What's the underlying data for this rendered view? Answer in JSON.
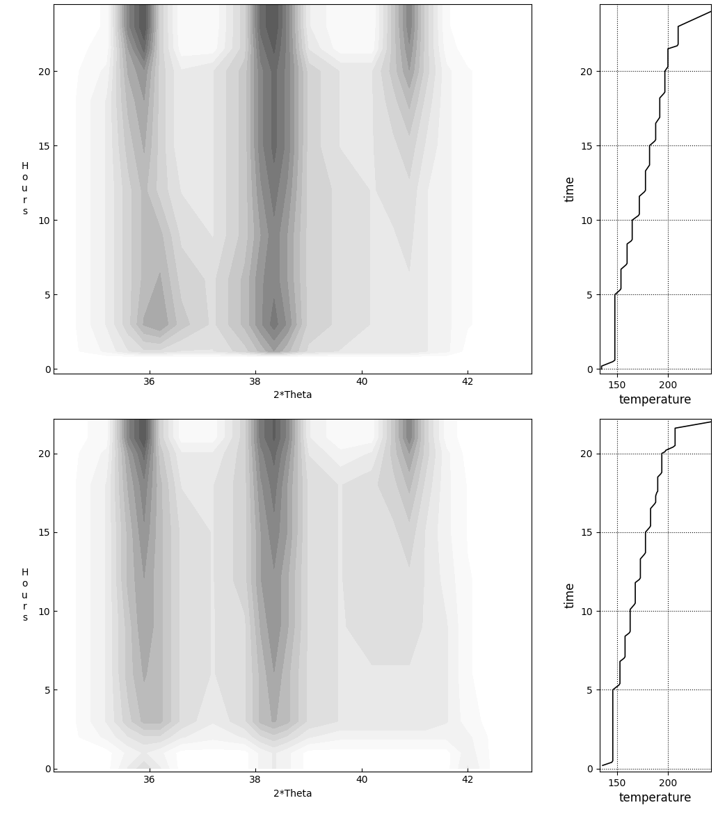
{
  "chart_data": [
    {
      "type": "contour",
      "x_label": "2*Theta",
      "y_label": "Hours",
      "xlim": [
        34.2,
        43.2
      ],
      "xticks": [
        36,
        38,
        40,
        42
      ],
      "ylim": [
        -0.3,
        24.5
      ],
      "yticks": [
        0,
        5,
        10,
        15,
        20
      ],
      "x": [
        34.5,
        35.2,
        35.6,
        35.9,
        36.2,
        36.6,
        37.2,
        37.8,
        38.1,
        38.35,
        38.6,
        39.0,
        39.6,
        40.2,
        40.6,
        40.9,
        41.2,
        41.6,
        42.0,
        42.5
      ],
      "y": [
        0,
        0.8,
        1.2,
        3,
        6,
        9,
        12,
        15,
        18,
        20,
        21.5,
        23,
        24.5
      ],
      "z": [
        [
          0,
          0,
          0,
          0,
          0,
          0,
          0,
          0,
          0,
          0,
          0,
          0,
          0,
          0,
          0,
          0,
          0,
          0,
          0,
          0
        ],
        [
          0,
          0,
          0,
          0,
          0,
          0,
          0,
          0,
          0,
          0,
          0,
          0,
          0,
          0,
          0,
          0,
          0,
          0,
          0,
          0
        ],
        [
          0,
          1,
          2,
          2.5,
          2.5,
          2,
          2,
          3,
          4,
          5,
          4,
          2.5,
          2,
          2,
          2,
          2,
          1.5,
          1,
          0,
          0
        ],
        [
          0,
          1.5,
          3,
          4.5,
          5,
          3.5,
          2.5,
          4,
          5.5,
          6.5,
          5.5,
          3,
          2.5,
          2,
          2,
          2,
          1.5,
          1,
          0.3,
          0
        ],
        [
          0,
          1.5,
          3,
          4,
          4.5,
          3,
          2.5,
          4,
          5.5,
          6,
          5,
          3,
          2.5,
          2,
          2,
          2,
          1.5,
          1,
          0.3,
          0
        ],
        [
          0,
          1.5,
          3,
          4,
          4,
          2.5,
          2,
          3.5,
          5,
          6,
          5,
          3,
          2.5,
          2,
          2,
          2.2,
          1.5,
          1,
          0.3,
          0
        ],
        [
          0,
          1.5,
          3,
          4,
          3,
          2,
          2,
          3.5,
          5.5,
          6.5,
          5.5,
          3,
          2.5,
          2,
          2.2,
          2.5,
          1.5,
          1,
          0.3,
          0
        ],
        [
          0,
          1.5,
          3.5,
          4.5,
          3,
          1.5,
          2,
          3.5,
          6,
          7,
          6,
          3,
          2,
          2,
          2.5,
          3,
          2,
          1,
          0.3,
          0
        ],
        [
          0,
          1.5,
          4,
          5,
          3,
          1.5,
          2,
          3.5,
          6,
          7,
          6,
          3,
          2,
          2,
          3,
          4,
          2.5,
          1,
          0.3,
          0
        ],
        [
          0,
          1,
          4.5,
          5.5,
          3,
          1.5,
          2,
          3.5,
          6,
          7,
          6,
          3,
          2,
          2,
          3.5,
          5,
          3,
          1,
          0.3,
          0
        ],
        [
          0,
          0.5,
          5,
          7,
          3,
          0.5,
          0.5,
          3,
          6.5,
          7.5,
          6,
          2,
          0.5,
          0.5,
          3.5,
          5.5,
          3,
          0.5,
          0,
          0
        ],
        [
          0,
          0.3,
          6,
          8,
          3,
          0.3,
          0.3,
          3,
          7,
          8,
          6,
          1.5,
          0.3,
          0.3,
          3.5,
          6,
          3,
          0.3,
          0,
          0
        ],
        [
          0,
          0.3,
          6,
          8,
          3,
          0.3,
          0.3,
          3,
          7,
          8,
          6,
          1.5,
          0.3,
          0.3,
          3.5,
          6,
          3,
          0.3,
          0,
          0
        ]
      ]
    },
    {
      "type": "line",
      "x_label": "temperature",
      "y_label": "time",
      "grid": true,
      "color": "#000000",
      "xlim": [
        133,
        242
      ],
      "xticks": [
        150,
        200
      ],
      "ylim": [
        -0.3,
        24.5
      ],
      "yticks": [
        0,
        5,
        10,
        15,
        20
      ],
      "x": [
        135,
        135,
        146,
        148,
        148,
        153,
        154,
        154,
        159,
        160,
        160,
        164,
        165,
        165,
        171,
        172,
        172,
        177,
        178,
        178,
        181,
        182,
        182,
        187,
        188,
        188,
        191,
        192,
        192,
        196,
        197,
        197,
        199,
        200,
        200,
        209,
        210,
        210,
        242
      ],
      "y": [
        0,
        0.2,
        0.5,
        0.6,
        5,
        5.3,
        5.4,
        6.7,
        7,
        7.1,
        8.4,
        8.6,
        8.7,
        10,
        10.3,
        10.4,
        11.6,
        11.9,
        12,
        13.3,
        13.6,
        13.7,
        15,
        15.3,
        15.4,
        16.5,
        16.8,
        16.9,
        18.2,
        18.5,
        18.6,
        20,
        20.2,
        20.3,
        21.5,
        21.7,
        21.8,
        23,
        24
      ]
    },
    {
      "type": "contour",
      "x_label": "2*Theta",
      "y_label": "Hours",
      "xlim": [
        34.2,
        43.2
      ],
      "xticks": [
        36,
        38,
        40,
        42
      ],
      "ylim": [
        -0.2,
        22.2
      ],
      "yticks": [
        0,
        5,
        10,
        15,
        20
      ],
      "x": [
        34.5,
        35.2,
        35.6,
        35.9,
        36.2,
        36.6,
        37.2,
        37.8,
        38.1,
        38.35,
        38.6,
        39.0,
        39.6,
        40.2,
        40.6,
        40.9,
        41.2,
        41.6,
        42.0,
        42.5
      ],
      "y": [
        0,
        1,
        2,
        3,
        6,
        9,
        12,
        15,
        18,
        20,
        21,
        22.5
      ],
      "z": [
        [
          0,
          0,
          1.5,
          2.5,
          1.5,
          0,
          0,
          0,
          1,
          1.5,
          1,
          0,
          0,
          0,
          0,
          0,
          0,
          0,
          1.5,
          0
        ],
        [
          0,
          0,
          1,
          1.5,
          1,
          0,
          0,
          0,
          1,
          1.5,
          1,
          0,
          0,
          0,
          0,
          0,
          0,
          0,
          1.2,
          0
        ],
        [
          0,
          1,
          2,
          2.5,
          2.5,
          1.5,
          1,
          1.5,
          2.5,
          3,
          2.5,
          1.5,
          1,
          1,
          1,
          1,
          1,
          1,
          1,
          0
        ],
        [
          0,
          1.5,
          3,
          4,
          4,
          2.5,
          1.5,
          2.5,
          4,
          4.5,
          4,
          2.5,
          2,
          2,
          2,
          2,
          2,
          1.5,
          0.5,
          0
        ],
        [
          0,
          1.5,
          3.5,
          4.5,
          4,
          2.5,
          2,
          2.5,
          4,
          5,
          4,
          2.5,
          2,
          2,
          2,
          2,
          2,
          1.5,
          0.3,
          0
        ],
        [
          0,
          1.5,
          3.5,
          5,
          4,
          2.5,
          2,
          2.5,
          4.5,
          5.5,
          4.5,
          2.5,
          2,
          2.2,
          2.2,
          2.2,
          2,
          1.5,
          0.3,
          0
        ],
        [
          0,
          1.5,
          4,
          5,
          4,
          2.5,
          2,
          3,
          5,
          5.5,
          4.5,
          2.5,
          2,
          2.5,
          2.5,
          2.5,
          2,
          1.2,
          0.3,
          0
        ],
        [
          0,
          1.5,
          4,
          5.5,
          4,
          2.5,
          2,
          3,
          5,
          6,
          5,
          2.5,
          2,
          2.5,
          2.5,
          3,
          2,
          1,
          0.2,
          0
        ],
        [
          0,
          1.5,
          4.5,
          6,
          4,
          2,
          2,
          3,
          5.5,
          6.5,
          5,
          2.5,
          2,
          2.5,
          3,
          4,
          2.5,
          1,
          0.2,
          0
        ],
        [
          0,
          1,
          5,
          7,
          3.5,
          1.5,
          1.5,
          3,
          6,
          7,
          5.5,
          2,
          1,
          1.5,
          3.5,
          5,
          3,
          1,
          0,
          0
        ],
        [
          0,
          0.5,
          6,
          8,
          3,
          0.5,
          0.5,
          3,
          6.5,
          7.5,
          6,
          1.5,
          0.3,
          0.5,
          3.5,
          6,
          3,
          0.5,
          0,
          0
        ],
        [
          0,
          0.5,
          6,
          8,
          3,
          0.5,
          0.5,
          3,
          6.5,
          7.5,
          6,
          1.5,
          0.3,
          0.5,
          3.5,
          6,
          3,
          0.5,
          0,
          0
        ]
      ]
    },
    {
      "type": "line",
      "x_label": "temperature",
      "y_label": "time",
      "grid": true,
      "color": "#000000",
      "xlim": [
        133,
        242
      ],
      "xticks": [
        150,
        200
      ],
      "ylim": [
        -0.2,
        22.2
      ],
      "yticks": [
        0,
        5,
        10,
        15,
        20
      ],
      "x": [
        136,
        145,
        146,
        146,
        152,
        153,
        153,
        157,
        158,
        158,
        162,
        163,
        163,
        167,
        168,
        168,
        172,
        173,
        173,
        177,
        178,
        178,
        182,
        183,
        183,
        187,
        188,
        188,
        189,
        190,
        190,
        193,
        194,
        194,
        197,
        198,
        198,
        205,
        207,
        207,
        242
      ],
      "y": [
        0.2,
        0.4,
        0.5,
        5,
        5.3,
        5.4,
        6.8,
        7,
        7.1,
        8.4,
        8.6,
        8.7,
        10.1,
        10.4,
        10.5,
        11.8,
        12,
        12.1,
        13.3,
        13.6,
        13.7,
        15,
        15.3,
        15.4,
        16.5,
        16.8,
        16.9,
        17.3,
        17.5,
        17.6,
        18.5,
        18.7,
        18.8,
        20,
        20.1,
        20.2,
        20.2,
        20.4,
        20.5,
        21.6,
        22
      ]
    }
  ]
}
